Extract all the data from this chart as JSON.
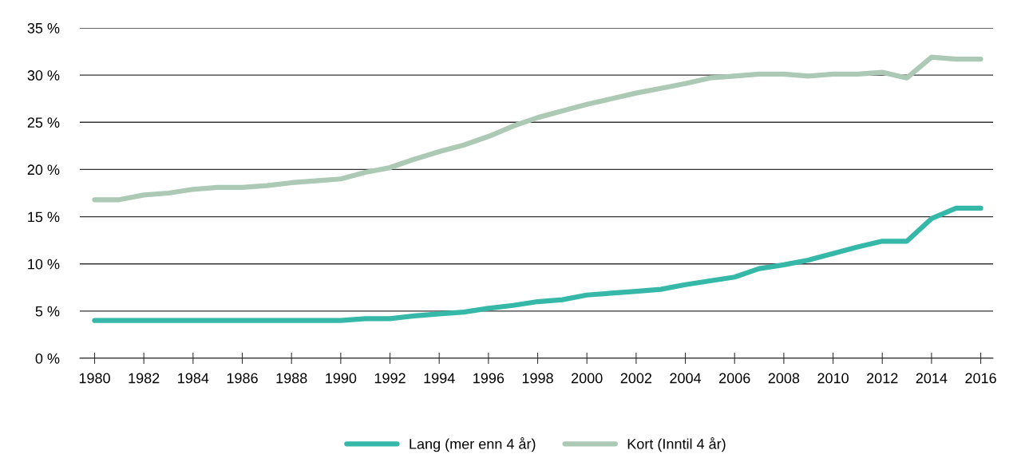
{
  "chart_data": {
    "type": "line",
    "x": [
      1980,
      1981,
      1982,
      1983,
      1984,
      1985,
      1986,
      1987,
      1988,
      1989,
      1990,
      1991,
      1992,
      1993,
      1994,
      1995,
      1996,
      1997,
      1998,
      1999,
      2000,
      2001,
      2002,
      2003,
      2004,
      2005,
      2006,
      2007,
      2008,
      2009,
      2010,
      2011,
      2012,
      2013,
      2014,
      2015,
      2016
    ],
    "series": [
      {
        "name": "Lang (mer enn 4 år)",
        "color": "#36b8a8",
        "values": [
          4.0,
          4.0,
          4.0,
          4.0,
          4.0,
          4.0,
          4.0,
          4.0,
          4.0,
          4.0,
          4.0,
          4.2,
          4.2,
          4.5,
          4.7,
          4.9,
          5.3,
          5.6,
          6.0,
          6.2,
          6.7,
          6.9,
          7.1,
          7.3,
          7.8,
          8.2,
          8.6,
          9.5,
          9.9,
          10.4,
          11.1,
          11.8,
          12.4,
          12.4,
          14.8,
          15.9,
          15.9
        ]
      },
      {
        "name": "Kort (Inntil 4 år)",
        "color": "#abc9b5",
        "values": [
          16.8,
          16.8,
          17.3,
          17.5,
          17.9,
          18.1,
          18.1,
          18.3,
          18.6,
          18.8,
          19.0,
          19.7,
          20.2,
          21.1,
          21.9,
          22.6,
          23.5,
          24.6,
          25.5,
          26.2,
          26.9,
          27.5,
          28.1,
          28.6,
          29.1,
          29.7,
          29.9,
          30.1,
          30.1,
          29.9,
          30.1,
          30.1,
          30.3,
          29.7,
          31.9,
          31.7,
          31.7
        ]
      }
    ],
    "xlim": [
      1979.4,
      2016.5
    ],
    "xticks": [
      1980,
      1982,
      1984,
      1986,
      1988,
      1990,
      1992,
      1994,
      1996,
      1998,
      2000,
      2002,
      2004,
      2006,
      2008,
      2010,
      2012,
      2014,
      2016
    ],
    "ylim": [
      0,
      35
    ],
    "yticks": [
      {
        "value": 0,
        "label": "0 %"
      },
      {
        "value": 5,
        "label": "5 %"
      },
      {
        "value": 10,
        "label": "10 %"
      },
      {
        "value": 15,
        "label": "15 %"
      },
      {
        "value": 20,
        "label": "20 %"
      },
      {
        "value": 25,
        "label": "25 %"
      },
      {
        "value": 30,
        "label": "30 %"
      },
      {
        "value": 35,
        "label": "35 %"
      }
    ],
    "grid": "y",
    "legend": "bottom",
    "marker": "none",
    "line_style": "solid"
  }
}
